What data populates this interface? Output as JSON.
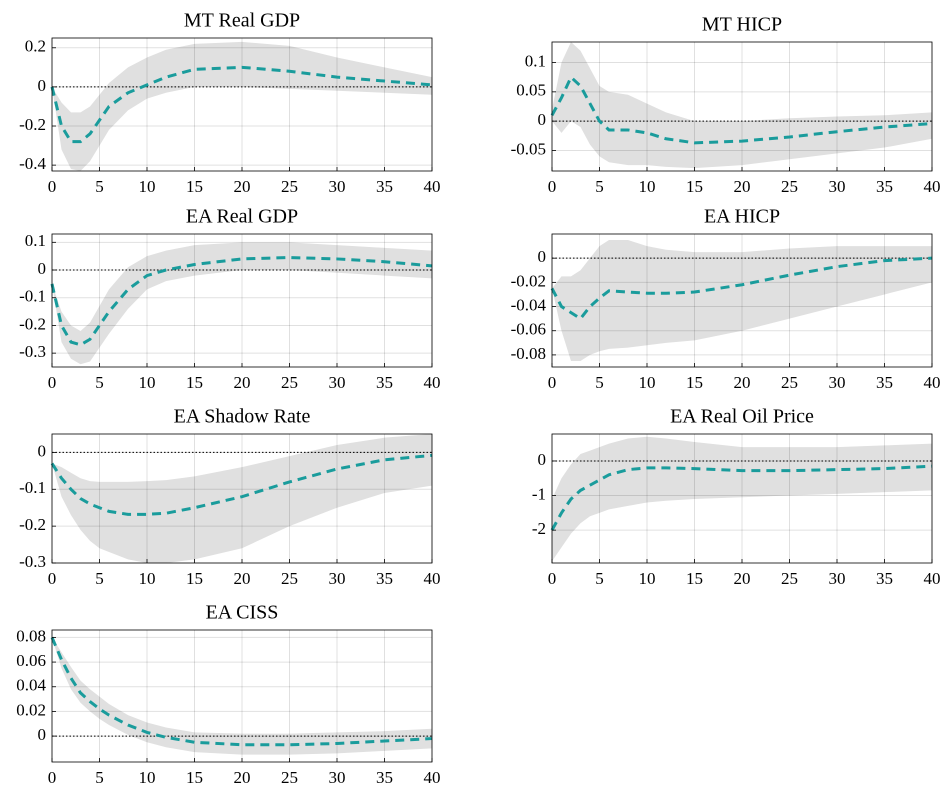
{
  "chart_data": [
    {
      "type": "line",
      "title": "MT Real GDP",
      "x": [
        0,
        1,
        2,
        3,
        4,
        5,
        6,
        8,
        10,
        12,
        15,
        20,
        25,
        30,
        35,
        40
      ],
      "values": [
        0,
        -0.2,
        -0.28,
        -0.28,
        -0.24,
        -0.17,
        -0.1,
        -0.03,
        0.01,
        0.05,
        0.09,
        0.1,
        0.08,
        0.05,
        0.03,
        0.01
      ],
      "lower": [
        0,
        -0.32,
        -0.42,
        -0.43,
        -0.38,
        -0.3,
        -0.22,
        -0.12,
        -0.06,
        -0.03,
        0,
        0,
        -0.01,
        -0.02,
        -0.03,
        -0.04
      ],
      "upper": [
        0,
        -0.08,
        -0.13,
        -0.13,
        -0.1,
        -0.04,
        0.02,
        0.1,
        0.15,
        0.19,
        0.22,
        0.23,
        0.21,
        0.15,
        0.1,
        0.05
      ],
      "color": "#1a9c9c",
      "band_color": "#e0e0e0",
      "xlim": [
        0,
        40
      ],
      "xticks": [
        0,
        5,
        10,
        15,
        20,
        25,
        30,
        35,
        40
      ],
      "ylim": [
        -0.43,
        0.25
      ],
      "yticks": [
        -0.4,
        -0.2,
        0,
        0.2
      ],
      "grid": true,
      "zero_line": true
    },
    {
      "type": "line",
      "title": "MT HICP",
      "x": [
        0,
        1,
        2,
        3,
        4,
        5,
        6,
        8,
        10,
        12,
        15,
        20,
        25,
        30,
        35,
        40
      ],
      "values": [
        0.01,
        0.04,
        0.075,
        0.06,
        0.03,
        0,
        -0.015,
        -0.015,
        -0.02,
        -0.03,
        -0.037,
        -0.034,
        -0.027,
        -0.018,
        -0.01,
        -0.004
      ],
      "lower": [
        0,
        -0.02,
        0,
        -0.01,
        -0.04,
        -0.06,
        -0.07,
        -0.075,
        -0.075,
        -0.078,
        -0.08,
        -0.075,
        -0.065,
        -0.055,
        -0.045,
        -0.03
      ],
      "upper": [
        0.02,
        0.1,
        0.135,
        0.12,
        0.09,
        0.06,
        0.05,
        0.045,
        0.03,
        0.015,
        0,
        0,
        0.005,
        0.008,
        0.01,
        0.015
      ],
      "color": "#1a9c9c",
      "band_color": "#e0e0e0",
      "xlim": [
        0,
        40
      ],
      "xticks": [
        0,
        5,
        10,
        15,
        20,
        25,
        30,
        35,
        40
      ],
      "ylim": [
        -0.085,
        0.135
      ],
      "yticks": [
        -0.05,
        0,
        0.05,
        0.1
      ],
      "grid": true,
      "zero_line": true
    },
    {
      "type": "line",
      "title": "EA Real GDP",
      "x": [
        0,
        1,
        2,
        3,
        4,
        5,
        6,
        8,
        10,
        12,
        15,
        20,
        25,
        30,
        35,
        40
      ],
      "values": [
        -0.05,
        -0.2,
        -0.26,
        -0.27,
        -0.25,
        -0.2,
        -0.15,
        -0.07,
        -0.02,
        0,
        0.02,
        0.04,
        0.045,
        0.04,
        0.03,
        0.015
      ],
      "lower": [
        -0.05,
        -0.26,
        -0.32,
        -0.34,
        -0.33,
        -0.28,
        -0.23,
        -0.14,
        -0.07,
        -0.04,
        -0.02,
        0,
        0,
        -0.01,
        -0.02,
        -0.03
      ],
      "upper": [
        -0.05,
        -0.15,
        -0.2,
        -0.22,
        -0.19,
        -0.13,
        -0.07,
        0.01,
        0.05,
        0.07,
        0.09,
        0.1,
        0.1,
        0.09,
        0.08,
        0.07
      ],
      "color": "#1a9c9c",
      "band_color": "#e0e0e0",
      "xlim": [
        0,
        40
      ],
      "xticks": [
        0,
        5,
        10,
        15,
        20,
        25,
        30,
        35,
        40
      ],
      "ylim": [
        -0.35,
        0.13
      ],
      "yticks": [
        -0.3,
        -0.2,
        -0.1,
        0,
        0.1
      ],
      "grid": true,
      "zero_line": true
    },
    {
      "type": "line",
      "title": "EA HICP",
      "x": [
        0,
        1,
        2,
        3,
        4,
        5,
        6,
        8,
        10,
        12,
        15,
        20,
        25,
        30,
        35,
        40
      ],
      "values": [
        -0.025,
        -0.04,
        -0.045,
        -0.05,
        -0.04,
        -0.033,
        -0.027,
        -0.028,
        -0.029,
        -0.029,
        -0.028,
        -0.022,
        -0.014,
        -0.007,
        -0.002,
        0
      ],
      "lower": [
        -0.025,
        -0.06,
        -0.085,
        -0.085,
        -0.08,
        -0.077,
        -0.075,
        -0.074,
        -0.072,
        -0.07,
        -0.068,
        -0.06,
        -0.05,
        -0.04,
        -0.03,
        -0.02
      ],
      "upper": [
        -0.025,
        -0.015,
        -0.015,
        -0.01,
        0,
        0.01,
        0.015,
        0.015,
        0.01,
        0.007,
        0.005,
        0.005,
        0.008,
        0.01,
        0.01,
        0.01
      ],
      "color": "#1a9c9c",
      "band_color": "#e0e0e0",
      "xlim": [
        0,
        40
      ],
      "xticks": [
        0,
        5,
        10,
        15,
        20,
        25,
        30,
        35,
        40
      ],
      "ylim": [
        -0.09,
        0.02
      ],
      "yticks": [
        -0.08,
        -0.06,
        -0.04,
        -0.02,
        0
      ],
      "grid": true,
      "zero_line": true
    },
    {
      "type": "line",
      "title": "EA Shadow Rate",
      "x": [
        0,
        1,
        2,
        3,
        4,
        5,
        6,
        8,
        10,
        12,
        15,
        20,
        25,
        30,
        35,
        40
      ],
      "values": [
        -0.03,
        -0.07,
        -0.1,
        -0.125,
        -0.14,
        -0.15,
        -0.16,
        -0.168,
        -0.168,
        -0.165,
        -0.15,
        -0.12,
        -0.08,
        -0.045,
        -0.02,
        -0.008
      ],
      "lower": [
        -0.03,
        -0.12,
        -0.17,
        -0.21,
        -0.24,
        -0.26,
        -0.27,
        -0.29,
        -0.3,
        -0.3,
        -0.29,
        -0.26,
        -0.2,
        -0.15,
        -0.11,
        -0.09
      ],
      "upper": [
        -0.03,
        -0.04,
        -0.055,
        -0.07,
        -0.078,
        -0.08,
        -0.08,
        -0.08,
        -0.078,
        -0.075,
        -0.065,
        -0.04,
        -0.01,
        0.02,
        0.04,
        0.05
      ],
      "color": "#1a9c9c",
      "band_color": "#e0e0e0",
      "xlim": [
        0,
        40
      ],
      "xticks": [
        0,
        5,
        10,
        15,
        20,
        25,
        30,
        35,
        40
      ],
      "ylim": [
        -0.3,
        0.05
      ],
      "yticks": [
        -0.3,
        -0.2,
        -0.1,
        0
      ],
      "grid": true,
      "zero_line": true
    },
    {
      "type": "line",
      "title": "EA Real Oil Price",
      "x": [
        0,
        1,
        2,
        3,
        4,
        5,
        6,
        8,
        10,
        12,
        15,
        20,
        25,
        30,
        35,
        40
      ],
      "values": [
        -2,
        -1.5,
        -1.1,
        -0.85,
        -0.7,
        -0.55,
        -0.4,
        -0.25,
        -0.2,
        -0.2,
        -0.22,
        -0.28,
        -0.28,
        -0.25,
        -0.22,
        -0.15
      ],
      "lower": [
        -2.9,
        -2.5,
        -2.1,
        -1.8,
        -1.6,
        -1.5,
        -1.4,
        -1.3,
        -1.2,
        -1.15,
        -1.1,
        -1.05,
        -1,
        -0.95,
        -0.9,
        -0.85
      ],
      "upper": [
        -1.1,
        -0.5,
        -0.1,
        0.2,
        0.3,
        0.4,
        0.5,
        0.65,
        0.7,
        0.65,
        0.55,
        0.4,
        0.4,
        0.4,
        0.45,
        0.5
      ],
      "color": "#1a9c9c",
      "band_color": "#e0e0e0",
      "xlim": [
        0,
        40
      ],
      "xticks": [
        0,
        5,
        10,
        15,
        20,
        25,
        30,
        35,
        40
      ],
      "ylim": [
        -2.95,
        0.78
      ],
      "yticks": [
        -2,
        -1,
        0
      ],
      "grid": true,
      "zero_line": true
    },
    {
      "type": "line",
      "title": "EA CISS",
      "x": [
        0,
        1,
        2,
        3,
        4,
        5,
        6,
        8,
        10,
        12,
        15,
        20,
        25,
        30,
        35,
        40
      ],
      "values": [
        0.08,
        0.062,
        0.047,
        0.035,
        0.028,
        0.022,
        0.017,
        0.009,
        0.003,
        -0.001,
        -0.005,
        -0.007,
        -0.007,
        -0.006,
        -0.004,
        -0.002
      ],
      "lower": [
        0.08,
        0.055,
        0.038,
        0.027,
        0.02,
        0.014,
        0.009,
        0.001,
        -0.005,
        -0.009,
        -0.013,
        -0.015,
        -0.015,
        -0.014,
        -0.012,
        -0.01
      ],
      "upper": [
        0.08,
        0.068,
        0.056,
        0.045,
        0.038,
        0.032,
        0.026,
        0.017,
        0.011,
        0.007,
        0.003,
        0.002,
        0.002,
        0.003,
        0.004,
        0.006
      ],
      "color": "#1a9c9c",
      "band_color": "#e0e0e0",
      "xlim": [
        0,
        40
      ],
      "xticks": [
        0,
        5,
        10,
        15,
        20,
        25,
        30,
        35,
        40
      ],
      "ylim": [
        -0.021,
        0.086
      ],
      "yticks": [
        0,
        0.02,
        0.04,
        0.06,
        0.08
      ],
      "grid": true,
      "zero_line": true
    }
  ]
}
